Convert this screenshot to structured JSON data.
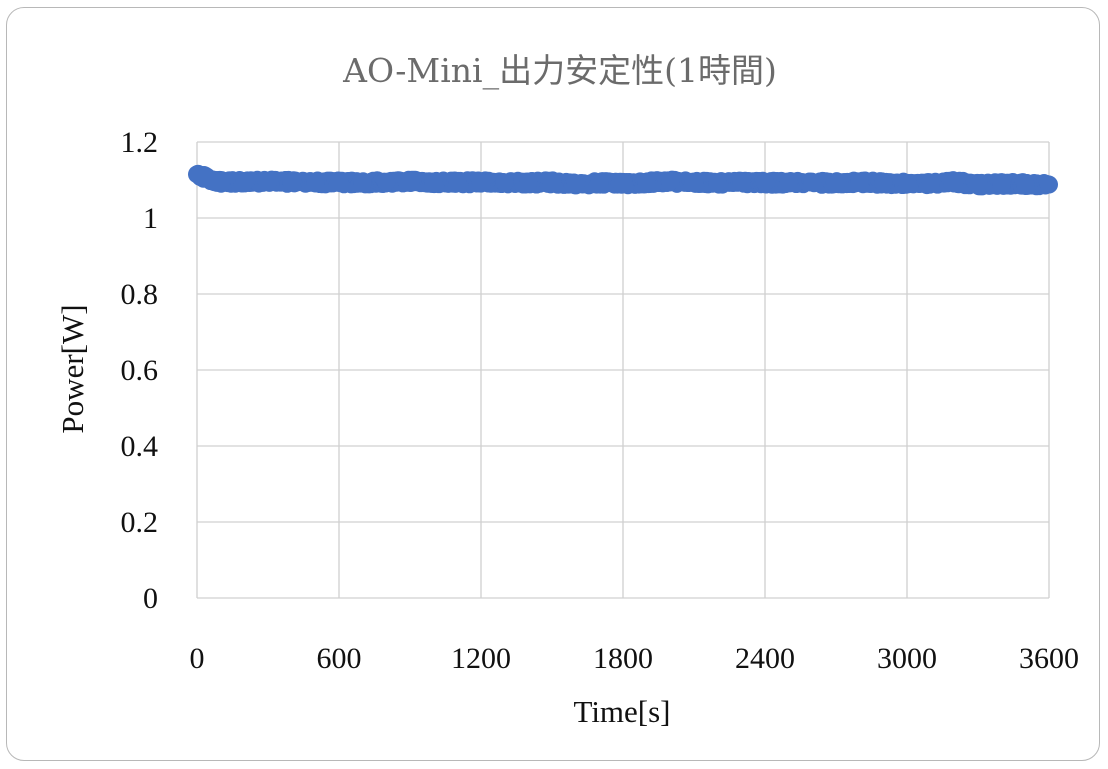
{
  "chart_data": {
    "type": "scatter",
    "title": "AO-Mini_出力安定性(1時間)",
    "xlabel": "Time[s]",
    "ylabel": "Power[W]",
    "xlim": [
      0,
      3600
    ],
    "ylim": [
      0,
      1.2
    ],
    "x_ticks": [
      "0",
      "600",
      "1200",
      "1800",
      "2400",
      "3000",
      "3600"
    ],
    "y_ticks": [
      "0",
      "0.2",
      "0.4",
      "0.6",
      "0.8",
      "1",
      "1.2"
    ],
    "grid": true,
    "legend": "none",
    "series": [
      {
        "color": "#4472c4",
        "x": [
          0,
          30,
          60,
          100,
          200,
          300,
          400,
          500,
          600,
          700,
          800,
          900,
          1000,
          1100,
          1200,
          1300,
          1400,
          1500,
          1600,
          1700,
          1800,
          1900,
          2000,
          2100,
          2200,
          2300,
          2400,
          2500,
          2600,
          2700,
          2800,
          2900,
          3000,
          3100,
          3200,
          3300,
          3400,
          3500,
          3600
        ],
        "y": [
          1.115,
          1.108,
          1.1,
          1.095,
          1.095,
          1.096,
          1.095,
          1.094,
          1.094,
          1.093,
          1.095,
          1.096,
          1.094,
          1.094,
          1.094,
          1.094,
          1.093,
          1.094,
          1.09,
          1.092,
          1.091,
          1.093,
          1.096,
          1.093,
          1.093,
          1.094,
          1.093,
          1.092,
          1.093,
          1.092,
          1.094,
          1.092,
          1.091,
          1.09,
          1.095,
          1.088,
          1.09,
          1.089,
          1.088
        ]
      }
    ]
  }
}
